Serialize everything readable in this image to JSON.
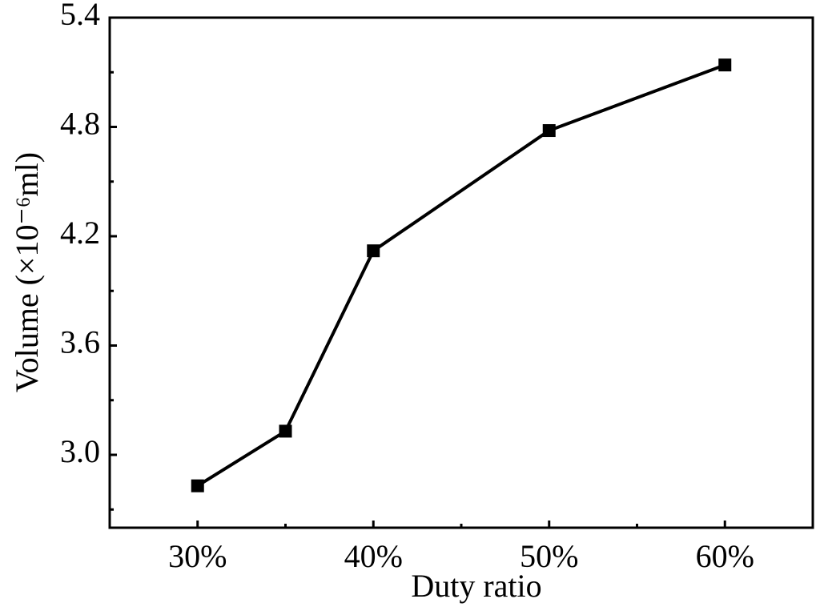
{
  "chart_data": {
    "type": "line",
    "x_label": "Duty ratio",
    "y_label": "Volume (×10⁻⁶ml)",
    "x": [
      30,
      35,
      40,
      50,
      60
    ],
    "series": [
      {
        "color": "#000000",
        "values": [
          2.83,
          3.13,
          4.12,
          4.78,
          5.14
        ]
      }
    ],
    "xlim": [
      25,
      65
    ],
    "xticks": [
      {
        "value": 30,
        "label": "30%"
      },
      {
        "value": 40,
        "label": "40%"
      },
      {
        "value": 50,
        "label": "50%"
      },
      {
        "value": 60,
        "label": "60%"
      }
    ],
    "xminorticks": [
      35,
      45,
      55
    ],
    "ylim": [
      2.6,
      5.4
    ],
    "yticks": [
      {
        "value": 3,
        "label": "3.0"
      },
      3.6,
      4.2,
      4.8,
      5.4
    ],
    "yminorticks": [
      2.7,
      3.3,
      3.9,
      4.5,
      5.1
    ],
    "grid": false
  }
}
